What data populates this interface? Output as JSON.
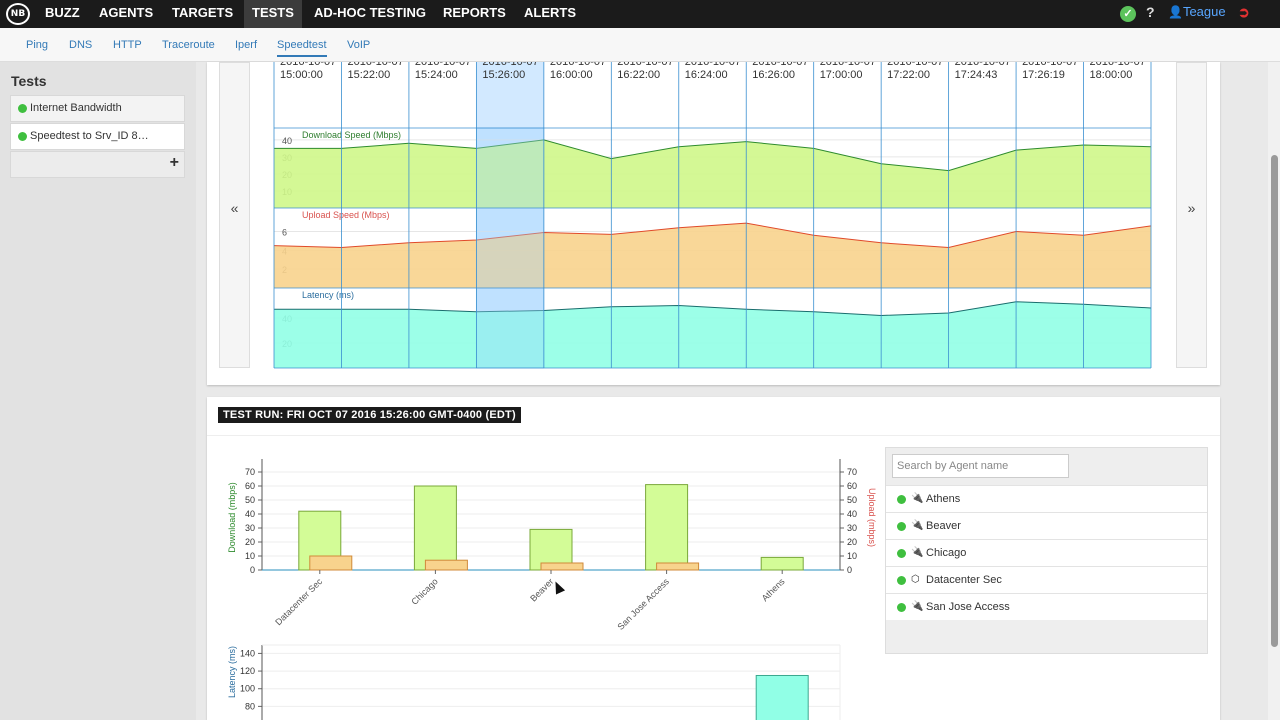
{
  "nav": {
    "logo_text": "NB",
    "items": [
      {
        "label": "BUZZ",
        "active": false
      },
      {
        "label": "AGENTS",
        "active": false
      },
      {
        "label": "TARGETS",
        "active": false
      },
      {
        "label": "TESTS",
        "active": true
      },
      {
        "label": "AD-HOC TESTING",
        "active": false
      },
      {
        "label": "REPORTS",
        "active": false
      },
      {
        "label": "ALERTS",
        "active": false
      }
    ],
    "status_icon": "check-circle-icon",
    "help_label": "?",
    "user_label": "Teague",
    "user_icon": "user-icon",
    "logout_icon": "logout-icon"
  },
  "subnav": {
    "items": [
      {
        "label": "Ping",
        "active": false
      },
      {
        "label": "DNS",
        "active": false
      },
      {
        "label": "HTTP",
        "active": false
      },
      {
        "label": "Traceroute",
        "active": false
      },
      {
        "label": "Iperf",
        "active": false
      },
      {
        "label": "Speedtest",
        "active": true
      },
      {
        "label": "VoIP",
        "active": false
      }
    ]
  },
  "sidebar": {
    "title": "Tests",
    "tests": [
      {
        "label": "Internet Bandwidth",
        "status": "ok",
        "active": false
      },
      {
        "label": "Speedtest to Srv_ID 8…",
        "status": "ok",
        "active": true
      }
    ],
    "add_label": "+"
  },
  "timeline": {
    "prev_label": "«",
    "next_label": "»",
    "columns": [
      {
        "date": "2016-10-07",
        "time": "15:00:00"
      },
      {
        "date": "2016-10-07",
        "time": "15:22:00"
      },
      {
        "date": "2016-10-07",
        "time": "15:24:00"
      },
      {
        "date": "2016-10-07",
        "time": "15:26:00",
        "selected": true
      },
      {
        "date": "2016-10-07",
        "time": "16:00:00"
      },
      {
        "date": "2016-10-07",
        "time": "16:22:00"
      },
      {
        "date": "2016-10-07",
        "time": "16:24:00"
      },
      {
        "date": "2016-10-07",
        "time": "16:26:00"
      },
      {
        "date": "2016-10-07",
        "time": "17:00:00"
      },
      {
        "date": "2016-10-07",
        "time": "17:22:00"
      },
      {
        "date": "2016-10-07",
        "time": "17:24:43"
      },
      {
        "date": "2016-10-07",
        "time": "17:26:19"
      },
      {
        "date": "2016-10-07",
        "time": "18:00:00"
      }
    ],
    "charts": [
      {
        "label": "Download Speed (Mbps)",
        "ticks": [
          10,
          20,
          30,
          40
        ],
        "ylim": [
          0,
          47
        ],
        "values": [
          35,
          35,
          38,
          35,
          40,
          29,
          36,
          39,
          35,
          26,
          22,
          34,
          37,
          36
        ],
        "fill": "#cff78a",
        "stroke": "#2e8b2e",
        "label_color": "#2e7d2e"
      },
      {
        "label": "Upload Speed (Mbps)",
        "ticks": [
          2,
          4,
          6
        ],
        "ylim": [
          0,
          8.5
        ],
        "values": [
          4.5,
          4.3,
          4.8,
          5.1,
          5.9,
          5.7,
          6.4,
          6.9,
          5.6,
          4.8,
          4.3,
          6.0,
          5.6,
          6.6
        ],
        "fill": "#f8d38d",
        "stroke": "#e04a2a",
        "label_color": "#d9534f"
      },
      {
        "label": "Latency (ms)",
        "ticks": [
          20,
          40
        ],
        "ylim": [
          0,
          64
        ],
        "values": [
          47,
          47,
          47,
          45,
          46,
          49,
          50,
          47,
          45,
          42,
          44,
          53,
          51,
          48
        ],
        "fill": "#91ffe6",
        "stroke": "#1a6d6d",
        "label_color": "#2a6d9e"
      }
    ]
  },
  "test_run": {
    "title": "TEST RUN: FRI OCT 07 2016 15:26:00 GMT-0400 (EDT)"
  },
  "chart_data": [
    {
      "type": "bar",
      "categories": [
        "Datacenter Sec",
        "Chicago",
        "Beaver",
        "San Jose Access",
        "Athens"
      ],
      "series": [
        {
          "name": "Download (mbps)",
          "values": [
            42,
            60,
            29,
            61,
            9
          ],
          "color": "#d3fc97"
        },
        {
          "name": "Upload (mbps)",
          "values": [
            10,
            7,
            5,
            5,
            0
          ],
          "color": "#f8d38d"
        }
      ],
      "ylabel": "Download (mbps)",
      "y2label": "Upload (mbps)",
      "ylim": [
        0,
        75
      ],
      "y2lim": [
        0,
        75
      ],
      "yticks": [
        0,
        10,
        20,
        30,
        40,
        50,
        60,
        70
      ],
      "y2ticks": [
        0,
        10,
        20,
        30,
        40,
        50,
        60,
        70
      ]
    },
    {
      "type": "bar",
      "categories": [
        "Datacenter Sec",
        "Chicago",
        "Beaver",
        "San Jose Access",
        "Athens"
      ],
      "series": [
        {
          "name": "Latency (ms)",
          "values": [
            null,
            null,
            null,
            null,
            115
          ],
          "color": "#91ffe6"
        }
      ],
      "ylabel": "Latency (ms)",
      "ylim": [
        0,
        145
      ],
      "yticks": [
        60,
        80,
        100,
        120,
        140
      ]
    }
  ],
  "agents": {
    "search_placeholder": "Search by Agent name",
    "items": [
      {
        "name": "Athens",
        "status": "ok",
        "icon": "plug-icon"
      },
      {
        "name": "Beaver",
        "status": "ok",
        "icon": "plug-icon"
      },
      {
        "name": "Chicago",
        "status": "ok",
        "icon": "plug-icon"
      },
      {
        "name": "Datacenter Sec",
        "status": "ok",
        "icon": "cube-icon"
      },
      {
        "name": "San Jose Access",
        "status": "ok",
        "icon": "plug-icon"
      }
    ]
  }
}
